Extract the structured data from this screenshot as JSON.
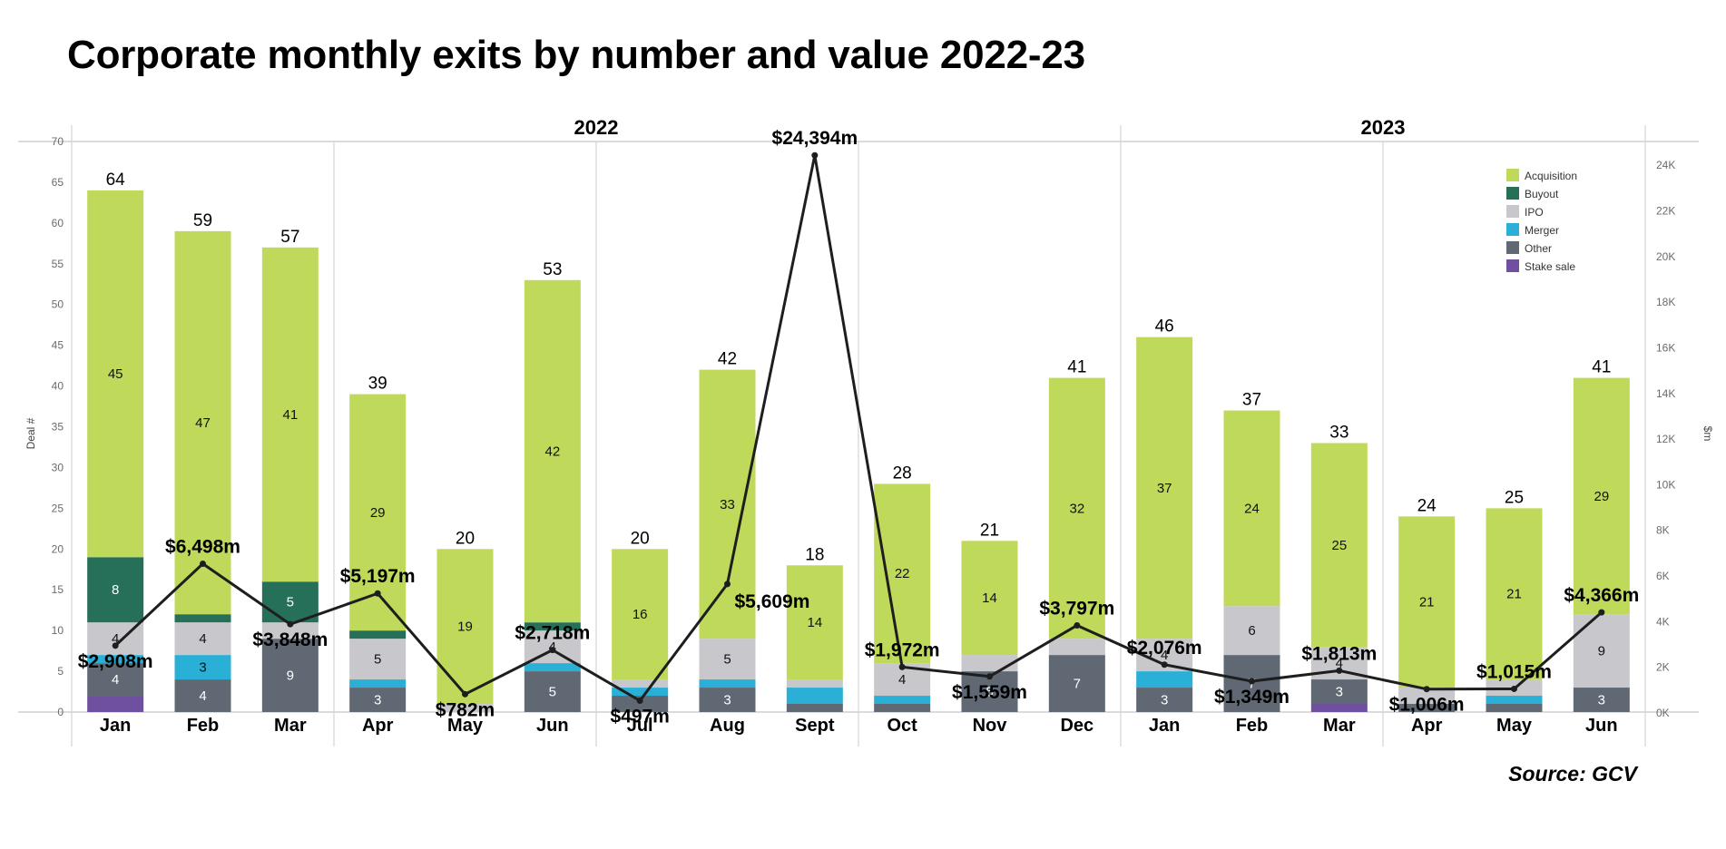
{
  "page": {
    "title": "Corporate monthly exits by number and value 2022-23",
    "source": "Source: GCV"
  },
  "chart_data": {
    "type": "bar",
    "subtype": "stacked bar with line overlay (dual axis)",
    "title": "Corporate monthly exits by number and value 2022-23",
    "ylabel": "Deal #",
    "y2label": "$m",
    "ylim": [
      0,
      70
    ],
    "yticks": [
      0,
      5,
      10,
      15,
      20,
      25,
      30,
      35,
      40,
      45,
      50,
      55,
      60,
      65,
      70
    ],
    "y2lim": [
      0,
      25000
    ],
    "y2ticks": [
      "0K",
      "2K",
      "4K",
      "6K",
      "8K",
      "10K",
      "12K",
      "14K",
      "16K",
      "18K",
      "20K",
      "22K",
      "24K"
    ],
    "y2tick_values": [
      0,
      2000,
      4000,
      6000,
      8000,
      10000,
      12000,
      14000,
      16000,
      18000,
      20000,
      22000,
      24000
    ],
    "grid": false,
    "legend_position": "top-right",
    "years": [
      {
        "label": "2022",
        "months": 12
      },
      {
        "label": "2023",
        "months": 6
      }
    ],
    "categories": [
      "Jan",
      "Feb",
      "Mar",
      "Apr",
      "May",
      "Jun",
      "Jul",
      "Aug",
      "Sept",
      "Oct",
      "Nov",
      "Dec",
      "Jan",
      "Feb",
      "Mar",
      "Apr",
      "May",
      "Jun"
    ],
    "series": [
      {
        "name": "Stake sale",
        "color": "#6f4f9f",
        "values": [
          2,
          0,
          0,
          0,
          0,
          0,
          0,
          0,
          0,
          0,
          0,
          0,
          0,
          0,
          1,
          0,
          0,
          0
        ],
        "show_labels": [
          false,
          false,
          false,
          false,
          false,
          false,
          false,
          false,
          false,
          false,
          false,
          false,
          false,
          false,
          false,
          false,
          false,
          false
        ]
      },
      {
        "name": "Other",
        "color": "#5f6873",
        "values": [
          4,
          4,
          9,
          3,
          0,
          5,
          2,
          3,
          1,
          1,
          5,
          7,
          3,
          7,
          3,
          1,
          1,
          3
        ],
        "show_labels": [
          true,
          true,
          true,
          true,
          false,
          true,
          false,
          true,
          false,
          false,
          true,
          true,
          true,
          true,
          true,
          false,
          false,
          true
        ]
      },
      {
        "name": "Merger",
        "color": "#2aafd6",
        "values": [
          1,
          3,
          0,
          1,
          0,
          1,
          1,
          1,
          2,
          1,
          0,
          0,
          2,
          0,
          0,
          0,
          1,
          0
        ],
        "show_labels": [
          false,
          true,
          false,
          false,
          false,
          false,
          false,
          false,
          false,
          false,
          false,
          false,
          false,
          false,
          false,
          false,
          false,
          false
        ]
      },
      {
        "name": "IPO",
        "color": "#c8c8cc",
        "values": [
          4,
          4,
          2,
          5,
          1,
          4,
          1,
          5,
          1,
          4,
          2,
          2,
          4,
          6,
          4,
          2,
          2,
          9
        ],
        "show_labels": [
          true,
          true,
          false,
          true,
          false,
          true,
          false,
          true,
          false,
          true,
          false,
          false,
          true,
          true,
          true,
          false,
          false,
          true
        ]
      },
      {
        "name": "Buyout",
        "color": "#267059",
        "values": [
          8,
          1,
          5,
          1,
          0,
          1,
          0,
          0,
          0,
          0,
          0,
          0,
          0,
          0,
          0,
          0,
          0,
          0
        ],
        "show_labels": [
          true,
          false,
          true,
          false,
          false,
          false,
          false,
          false,
          false,
          false,
          false,
          false,
          false,
          false,
          false,
          false,
          false,
          false
        ]
      },
      {
        "name": "Acquisition",
        "color": "#bfd95a",
        "values": [
          45,
          47,
          41,
          29,
          19,
          42,
          16,
          33,
          14,
          22,
          14,
          32,
          37,
          24,
          25,
          21,
          21,
          29
        ],
        "show_labels": [
          true,
          true,
          true,
          true,
          true,
          true,
          true,
          true,
          true,
          true,
          true,
          true,
          true,
          true,
          true,
          true,
          true,
          true
        ]
      }
    ],
    "totals": [
      64,
      59,
      57,
      39,
      20,
      53,
      20,
      42,
      18,
      28,
      21,
      41,
      46,
      37,
      33,
      24,
      25,
      41
    ],
    "line": {
      "name": "Value ($m)",
      "color": "#1e1e1e",
      "values": [
        2908,
        6498,
        3848,
        5197,
        782,
        2718,
        497,
        5609,
        24394,
        1972,
        1559,
        3797,
        2076,
        1349,
        1813,
        1006,
        1015,
        4366
      ],
      "labels": [
        "$2,908m",
        "$6,498m",
        "$3,848m",
        "$5,197m",
        "$782m",
        "$2,718m",
        "$497m",
        "$5,609m",
        "$24,394m",
        "$1,972m",
        "$1,559m",
        "$3,797m",
        "$2,076m",
        "$1,349m",
        "$1,813m",
        "$1,006m",
        "$1,015m",
        "$4,366m"
      ],
      "label_pos": [
        "below",
        "above",
        "below",
        "above",
        "below",
        "above",
        "below",
        "below-right",
        "above",
        "above",
        "below",
        "above",
        "above",
        "below",
        "above",
        "below",
        "above",
        "above"
      ]
    },
    "legend": [
      "Acquisition",
      "Buyout",
      "IPO",
      "Merger",
      "Other",
      "Stake sale"
    ]
  }
}
